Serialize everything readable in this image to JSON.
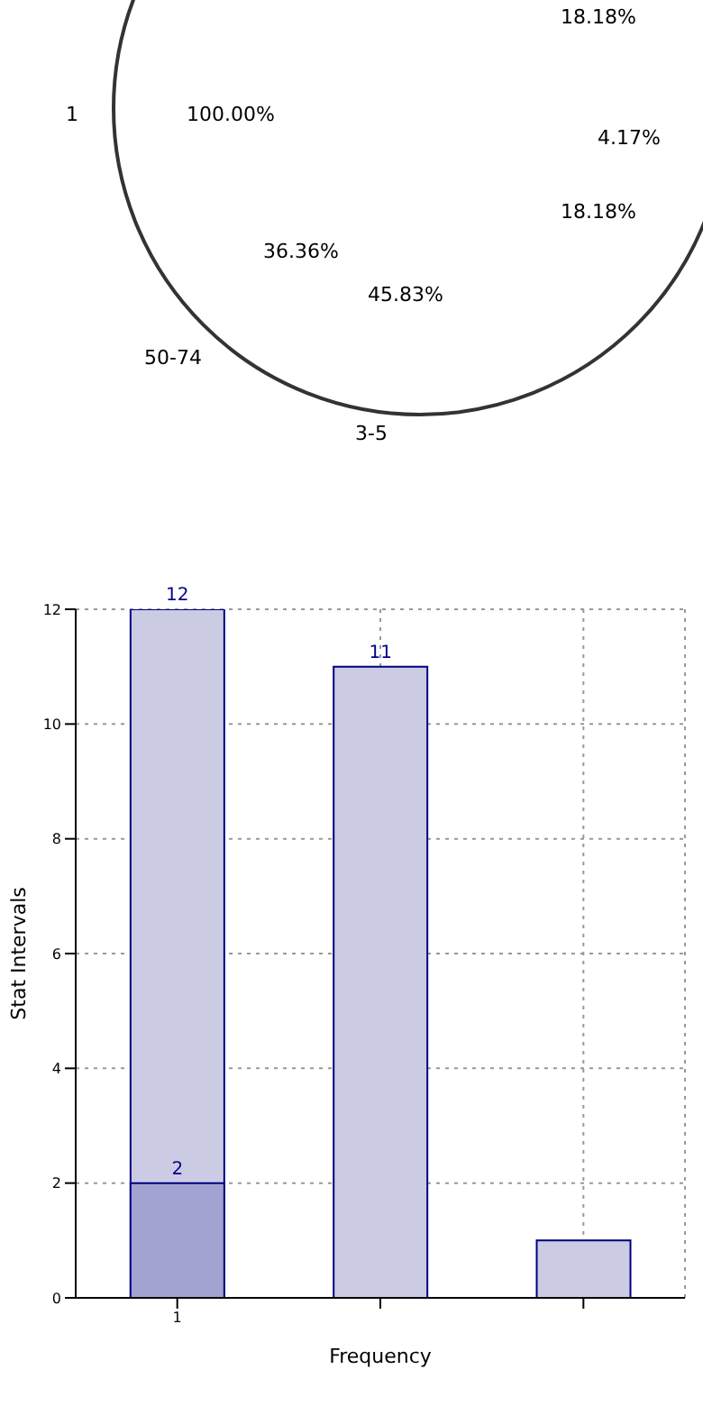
{
  "chart_data": [
    {
      "type": "other",
      "annotations": [
        "18.18%",
        "1",
        "100.00%",
        "4.17%",
        "18.18%",
        "36.36%",
        "45.83%",
        "50-74",
        "3-5"
      ]
    },
    {
      "type": "bar",
      "xlabel": "Frequency",
      "ylabel": "Stat Intervals",
      "categories": [
        "1",
        null,
        null
      ],
      "series": [
        {
          "color": "#cbcbe3",
          "values": [
            12,
            11,
            1
          ],
          "value_labels": [
            "12",
            "11",
            null
          ]
        },
        {
          "color": "#a3a3d1",
          "values": [
            2,
            null,
            null
          ],
          "value_labels": [
            "2",
            null,
            null
          ]
        }
      ],
      "ylim": [
        0,
        12
      ],
      "yticks": [
        0,
        2,
        4,
        6,
        8,
        10,
        12
      ],
      "grid": true
    }
  ]
}
